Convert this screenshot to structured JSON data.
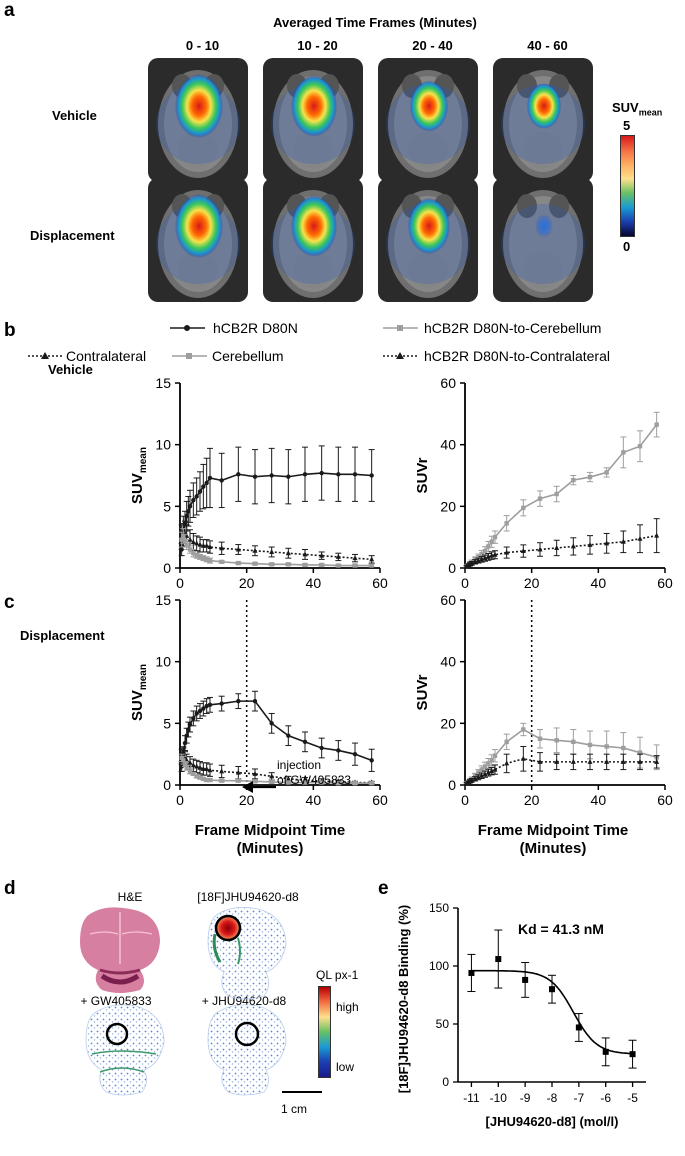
{
  "panels": {
    "a": "a",
    "b": "b",
    "c": "c",
    "d": "d",
    "e": "e"
  },
  "panel_a": {
    "header": "Averaged Time Frames (Minutes)",
    "frames": [
      "0 - 10",
      "10 - 20",
      "20 - 40",
      "40 - 60"
    ],
    "rows": [
      "Vehicle",
      "Displacement"
    ],
    "colorbar": {
      "label_main": "SUV",
      "label_sub": "mean",
      "max": "5",
      "min": "0"
    },
    "hot_intensity": [
      [
        1.0,
        0.95,
        0.75,
        0.65
      ],
      [
        1.0,
        0.95,
        0.85,
        0.15
      ]
    ]
  },
  "panel_b": {
    "row_label": "Vehicle",
    "legend_left": [
      "hCB2R D80N",
      "Contralateral",
      "Cerebellum"
    ],
    "legend_right": [
      "hCB2R D80N-to-Cerebellum",
      "hCB2R D80N-to-Contralateral"
    ]
  },
  "panel_c": {
    "row_label": "Displacement",
    "annotation_line1": "injection",
    "annotation_line2": "of GW405833",
    "xlabel_line1": "Frame Midpoint Time",
    "xlabel_line2": "(Minutes)"
  },
  "panel_d": {
    "labels": [
      "H&E",
      "[18F]JHU94620-d8",
      "+ GW405833",
      "+ JHU94620-d8"
    ],
    "colorbar": {
      "title": "QL px-1",
      "high": "high",
      "low": "low"
    },
    "scale": "1 cm"
  },
  "panel_e": {
    "kd": "Kd = 41.3 nM",
    "ylabel": "[18F]JHU94620-d8 Binding (%)",
    "xlabel": "[JHU94620-d8] (mol/l)"
  },
  "chart_data": [
    {
      "id": "b-left",
      "type": "line",
      "ylabel": "SUVmean",
      "xlim": [
        0,
        60
      ],
      "ylim": [
        0,
        15
      ],
      "xticks": [
        0,
        20,
        40,
        60
      ],
      "yticks": [
        0,
        5,
        10,
        15
      ],
      "series": [
        {
          "name": "hCB2R D80N",
          "style": "solid",
          "color": "#1a1a1a",
          "x": [
            0.5,
            1,
            1.5,
            2,
            2.5,
            3,
            4,
            5,
            6,
            7,
            8,
            9,
            12.5,
            17.5,
            22.5,
            27.5,
            32.5,
            37.5,
            42.5,
            47.5,
            52.5,
            57.5
          ],
          "y": [
            1.5,
            2.8,
            3.6,
            4.2,
            4.6,
            5.0,
            5.5,
            5.8,
            6.2,
            6.6,
            6.9,
            7.3,
            7.1,
            7.6,
            7.4,
            7.5,
            7.4,
            7.6,
            7.7,
            7.6,
            7.6,
            7.5
          ],
          "err": [
            0.5,
            0.8,
            1.0,
            1.2,
            1.2,
            1.3,
            1.4,
            1.5,
            1.6,
            1.8,
            2.0,
            2.4,
            2.2,
            2.2,
            2.2,
            2.2,
            2.2,
            2.2,
            2.2,
            2.2,
            2.2,
            2.1
          ]
        },
        {
          "name": "Contralateral",
          "style": "dotted",
          "color": "#1a1a1a",
          "x": [
            0.5,
            1,
            1.5,
            2,
            3,
            4,
            5,
            6,
            7,
            8,
            9,
            12.5,
            17.5,
            22.5,
            27.5,
            32.5,
            37.5,
            42.5,
            47.5,
            52.5,
            57.5
          ],
          "y": [
            2.5,
            3.0,
            2.8,
            2.6,
            2.3,
            2.1,
            2.0,
            1.9,
            1.8,
            1.8,
            1.7,
            1.6,
            1.5,
            1.4,
            1.3,
            1.2,
            1.1,
            1.0,
            0.9,
            0.8,
            0.7
          ],
          "err": [
            1.0,
            1.2,
            1.0,
            0.9,
            0.8,
            0.7,
            0.6,
            0.6,
            0.5,
            0.5,
            0.5,
            0.5,
            0.4,
            0.4,
            0.4,
            0.4,
            0.4,
            0.3,
            0.3,
            0.3,
            0.3
          ]
        },
        {
          "name": "Cerebellum",
          "style": "solid",
          "color": "#9e9e9e",
          "x": [
            0.5,
            1,
            1.5,
            2,
            3,
            4,
            5,
            6,
            7,
            8,
            9,
            12.5,
            17.5,
            22.5,
            27.5,
            32.5,
            37.5,
            42.5,
            47.5,
            52.5,
            57.5
          ],
          "y": [
            2.3,
            2.6,
            2.2,
            1.9,
            1.5,
            1.2,
            1.0,
            0.9,
            0.8,
            0.7,
            0.6,
            0.5,
            0.4,
            0.35,
            0.3,
            0.3,
            0.25,
            0.25,
            0.2,
            0.2,
            0.2
          ],
          "err": [
            0.6,
            0.6,
            0.5,
            0.4,
            0.3,
            0.3,
            0.2,
            0.2,
            0.2,
            0.2,
            0.2,
            0.1,
            0.1,
            0.1,
            0.1,
            0.1,
            0.1,
            0.1,
            0.1,
            0.1,
            0.1
          ]
        }
      ]
    },
    {
      "id": "b-right",
      "type": "line",
      "ylabel": "SUVr",
      "xlim": [
        0,
        60
      ],
      "ylim": [
        0,
        60
      ],
      "xticks": [
        0,
        20,
        40,
        60
      ],
      "yticks": [
        0,
        20,
        40,
        60
      ],
      "series": [
        {
          "name": "hCB2R D80N-to-Cerebellum",
          "style": "solid",
          "color": "#9e9e9e",
          "x": [
            0.5,
            1,
            1.5,
            2,
            3,
            4,
            5,
            6,
            7,
            8,
            9,
            12.5,
            17.5,
            22.5,
            27.5,
            32.5,
            37.5,
            42.5,
            47.5,
            52.5,
            57.5
          ],
          "y": [
            0.6,
            1.0,
            1.5,
            2.0,
            2.8,
            3.5,
            4.5,
            5.5,
            7.0,
            8.5,
            10.0,
            14.5,
            19.5,
            22.5,
            24.0,
            28.5,
            29.5,
            31.0,
            37.5,
            39.5,
            46.5
          ],
          "err": [
            0.3,
            0.4,
            0.5,
            0.6,
            0.8,
            1.0,
            1.2,
            1.4,
            1.6,
            1.8,
            2.0,
            2.5,
            2.6,
            2.5,
            2.5,
            1.5,
            1.5,
            1.5,
            5.0,
            5.0,
            4.0
          ]
        },
        {
          "name": "hCB2R D80N-to-Contralateral",
          "style": "dotted",
          "color": "#1a1a1a",
          "x": [
            0.5,
            1,
            1.5,
            2,
            3,
            4,
            5,
            6,
            7,
            8,
            9,
            12.5,
            17.5,
            22.5,
            27.5,
            32.5,
            37.5,
            42.5,
            47.5,
            52.5,
            57.5
          ],
          "y": [
            0.5,
            0.9,
            1.2,
            1.5,
            2.0,
            2.4,
            2.8,
            3.2,
            3.6,
            4.0,
            4.3,
            5.0,
            5.5,
            6.0,
            6.5,
            7.0,
            7.5,
            8.0,
            8.5,
            9.5,
            10.5
          ],
          "err": [
            0.3,
            0.4,
            0.5,
            0.6,
            0.7,
            0.8,
            0.9,
            1.0,
            1.1,
            1.2,
            1.3,
            1.8,
            2.0,
            2.2,
            2.5,
            2.8,
            3.0,
            3.2,
            3.5,
            4.5,
            5.5
          ]
        }
      ]
    },
    {
      "id": "c-left",
      "type": "line",
      "ylabel": "SUVmean",
      "xlim": [
        0,
        60
      ],
      "ylim": [
        0,
        15
      ],
      "xticks": [
        0,
        20,
        40,
        60
      ],
      "yticks": [
        0,
        5,
        10,
        15
      ],
      "vline_x": 20,
      "series": [
        {
          "name": "hCB2R D80N",
          "style": "solid",
          "color": "#1a1a1a",
          "x": [
            0.5,
            1,
            1.5,
            2,
            2.5,
            3,
            4,
            5,
            6,
            7,
            8,
            9,
            12.5,
            17.5,
            22.5,
            27.5,
            32.5,
            37.5,
            42.5,
            47.5,
            52.5,
            57.5
          ],
          "y": [
            1.5,
            2.6,
            3.4,
            4.0,
            4.5,
            4.9,
            5.4,
            5.8,
            6.0,
            6.2,
            6.4,
            6.5,
            6.6,
            6.8,
            6.8,
            5.0,
            4.0,
            3.5,
            3.0,
            2.8,
            2.5,
            2.0
          ],
          "err": [
            0.4,
            0.5,
            0.6,
            0.6,
            0.6,
            0.6,
            0.6,
            0.6,
            0.6,
            0.6,
            0.6,
            0.6,
            0.6,
            0.6,
            0.8,
            0.8,
            0.8,
            0.8,
            0.8,
            0.8,
            0.9,
            0.9
          ]
        },
        {
          "name": "Contralateral",
          "style": "dotted",
          "color": "#1a1a1a",
          "x": [
            0.5,
            1,
            1.5,
            2,
            3,
            4,
            5,
            6,
            7,
            8,
            9,
            12.5,
            17.5,
            22.5,
            27.5,
            32.5,
            37.5,
            42.5,
            47.5,
            52.5,
            57.5
          ],
          "y": [
            2.3,
            2.4,
            2.2,
            2.0,
            1.8,
            1.6,
            1.5,
            1.4,
            1.3,
            1.3,
            1.2,
            1.1,
            1.0,
            0.9,
            0.7,
            0.5,
            0.4,
            0.3,
            0.3,
            0.2,
            0.2
          ],
          "err": [
            0.6,
            0.6,
            0.5,
            0.5,
            0.5,
            0.5,
            0.5,
            0.5,
            0.5,
            0.5,
            0.5,
            0.5,
            0.5,
            0.4,
            0.3,
            0.2,
            0.2,
            0.2,
            0.1,
            0.1,
            0.1
          ]
        },
        {
          "name": "Cerebellum",
          "style": "solid",
          "color": "#9e9e9e",
          "x": [
            0.5,
            1,
            1.5,
            2,
            3,
            4,
            5,
            6,
            7,
            8,
            9,
            12.5,
            17.5,
            22.5,
            27.5,
            32.5,
            37.5,
            42.5,
            47.5,
            52.5,
            57.5
          ],
          "y": [
            2.2,
            2.0,
            1.7,
            1.4,
            1.1,
            0.9,
            0.7,
            0.6,
            0.5,
            0.4,
            0.4,
            0.35,
            0.35,
            0.3,
            0.25,
            0.2,
            0.2,
            0.2,
            0.15,
            0.15,
            0.15
          ],
          "err": [
            0.3,
            0.3,
            0.2,
            0.2,
            0.2,
            0.1,
            0.1,
            0.1,
            0.1,
            0.1,
            0.1,
            0.1,
            0.1,
            0.1,
            0.1,
            0.1,
            0.1,
            0.1,
            0.1,
            0.1,
            0.1
          ]
        }
      ]
    },
    {
      "id": "c-right",
      "type": "line",
      "ylabel": "SUVr",
      "xlim": [
        0,
        60
      ],
      "ylim": [
        0,
        60
      ],
      "xticks": [
        0,
        20,
        40,
        60
      ],
      "yticks": [
        0,
        20,
        40,
        60
      ],
      "vline_x": 20,
      "series": [
        {
          "name": "hCB2R D80N-to-Cerebellum",
          "style": "solid",
          "color": "#9e9e9e",
          "x": [
            0.5,
            1,
            1.5,
            2,
            3,
            4,
            5,
            6,
            7,
            8,
            9,
            12.5,
            17.5,
            22.5,
            27.5,
            32.5,
            37.5,
            42.5,
            47.5,
            52.5,
            57.5
          ],
          "y": [
            0.6,
            1.0,
            1.5,
            2.0,
            3.0,
            4.0,
            5.0,
            6.0,
            7.0,
            8.0,
            9.5,
            14.0,
            18.0,
            15.0,
            14.5,
            14.0,
            13.0,
            12.5,
            12.0,
            10.5,
            9.0
          ],
          "err": [
            0.3,
            0.4,
            0.5,
            0.6,
            0.8,
            1.0,
            1.2,
            1.4,
            1.6,
            1.8,
            2.0,
            2.5,
            2.0,
            3.0,
            4.0,
            4.0,
            4.5,
            5.0,
            5.0,
            5.0,
            4.0
          ]
        },
        {
          "name": "hCB2R D80N-to-Contralateral",
          "style": "dotted",
          "color": "#1a1a1a",
          "x": [
            0.5,
            1,
            1.5,
            2,
            3,
            4,
            5,
            6,
            7,
            8,
            9,
            12.5,
            17.5,
            22.5,
            27.5,
            32.5,
            37.5,
            42.5,
            47.5,
            52.5,
            57.5
          ],
          "y": [
            0.5,
            0.9,
            1.2,
            1.5,
            2.0,
            2.5,
            3.0,
            3.5,
            4.0,
            4.5,
            5.0,
            7.0,
            8.5,
            7.5,
            7.5,
            7.5,
            7.5,
            7.5,
            7.5,
            7.5,
            7.5
          ],
          "err": [
            0.3,
            0.4,
            0.5,
            0.6,
            0.7,
            0.8,
            0.9,
            1.0,
            1.1,
            1.2,
            1.5,
            3.0,
            4.0,
            3.0,
            2.5,
            2.5,
            2.5,
            2.5,
            2.5,
            2.5,
            2.0
          ]
        }
      ]
    },
    {
      "id": "e",
      "type": "scatter",
      "xlim": [
        -11.5,
        -4.5
      ],
      "ylim": [
        0,
        150
      ],
      "xticks": [
        -11,
        -10,
        -9,
        -8,
        -7,
        -6,
        -5
      ],
      "yticks": [
        0,
        50,
        100,
        150
      ],
      "points": {
        "x": [
          -11,
          -10,
          -9,
          -8,
          -7,
          -6,
          -5
        ],
        "y": [
          94,
          106,
          88,
          80,
          47,
          26,
          24
        ],
        "err": [
          16,
          25,
          15,
          12,
          12,
          12,
          12
        ]
      },
      "fit": {
        "top": 96,
        "bottom": 24,
        "log_ic50": -7.2,
        "slope": 1.0
      }
    }
  ]
}
